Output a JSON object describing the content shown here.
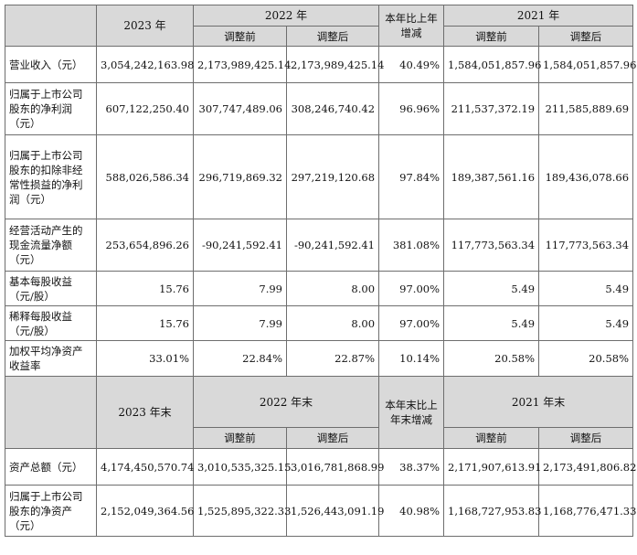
{
  "section1": {
    "col_2023": "2023 年",
    "col_2022": "2022 年",
    "col_change": "本年比上年增减",
    "col_2021": "2021 年",
    "sub_before": "调整前",
    "sub_after": "调整后",
    "rows": [
      {
        "label": "营业收入（元）",
        "v2023": "3,054,242,163.98",
        "v2022_before": "2,173,989,425.14",
        "v2022_after": "2,173,989,425.14",
        "change": "40.49%",
        "v2021_before": "1,584,051,857.96",
        "v2021_after": "1,584,051,857.96"
      },
      {
        "label": "归属于上市公司股东的净利润（元）",
        "v2023": "607,122,250.40",
        "v2022_before": "307,747,489.06",
        "v2022_after": "308,246,740.42",
        "change": "96.96%",
        "v2021_before": "211,537,372.19",
        "v2021_after": "211,585,889.69"
      },
      {
        "label": "归属于上市公司股东的扣除非经常性损益的净利润（元）",
        "v2023": "588,026,586.34",
        "v2022_before": "296,719,869.32",
        "v2022_after": "297,219,120.68",
        "change": "97.84%",
        "v2021_before": "189,387,561.16",
        "v2021_after": "189,436,078.66"
      },
      {
        "label": "经营活动产生的现金流量净额（元）",
        "v2023": "253,654,896.26",
        "v2022_before": "-90,241,592.41",
        "v2022_after": "-90,241,592.41",
        "change": "381.08%",
        "v2021_before": "117,773,563.34",
        "v2021_after": "117,773,563.34"
      },
      {
        "label": "基本每股收益（元/股）",
        "v2023": "15.76",
        "v2022_before": "7.99",
        "v2022_after": "8.00",
        "change": "97.00%",
        "v2021_before": "5.49",
        "v2021_after": "5.49"
      },
      {
        "label": "稀释每股收益（元/股）",
        "v2023": "15.76",
        "v2022_before": "7.99",
        "v2022_after": "8.00",
        "change": "97.00%",
        "v2021_before": "5.49",
        "v2021_after": "5.49"
      },
      {
        "label": "加权平均净资产收益率",
        "v2023": "33.01%",
        "v2022_before": "22.84%",
        "v2022_after": "22.87%",
        "change": "10.14%",
        "v2021_before": "20.58%",
        "v2021_after": "20.58%"
      }
    ]
  },
  "section2": {
    "col_2023": "2023 年末",
    "col_2022": "2022 年末",
    "col_change": "本年末比上年末增减",
    "col_2021": "2021 年末",
    "sub_before": "调整前",
    "sub_after": "调整后",
    "rows": [
      {
        "label": "资产总额（元）",
        "v2023": "4,174,450,570.74",
        "v2022_before": "3,010,535,325.15",
        "v2022_after": "3,016,781,868.99",
        "change": "38.37%",
        "v2021_before": "2,171,907,613.91",
        "v2021_after": "2,173,491,806.82"
      },
      {
        "label": "归属于上市公司股东的净资产（元）",
        "v2023": "2,152,049,364.56",
        "v2022_before": "1,525,895,322.33",
        "v2022_after": "1,526,443,091.19",
        "change": "40.98%",
        "v2021_before": "1,168,727,953.83",
        "v2021_after": "1,168,776,471.33"
      }
    ]
  }
}
